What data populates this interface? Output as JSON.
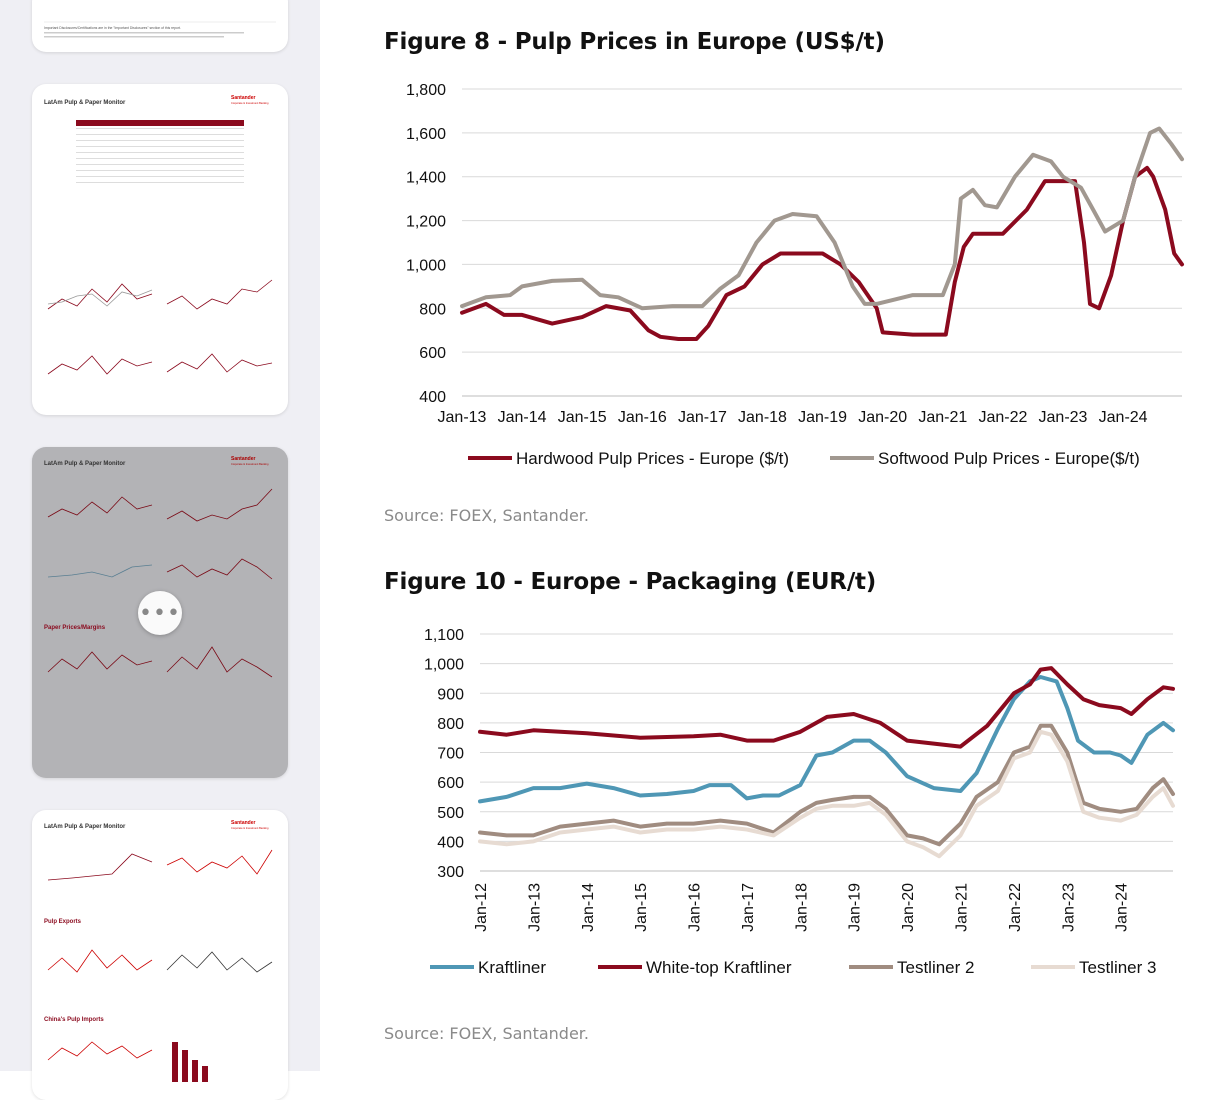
{
  "sidebar": {
    "pages": [
      {
        "id": "page-prev",
        "disclosure_title": "Important Disclosures/Certifications are in the \"Important Disclosures\" section of this report."
      },
      {
        "id": "page-a",
        "header": "LatAm Pulp & Paper Monitor",
        "brand": "Santander",
        "brand_sub": "Corporate & Investment Banking"
      },
      {
        "id": "page-b",
        "header": "LatAm Pulp & Paper Monitor",
        "brand": "Santander",
        "brand_sub": "Corporate & Investment Banking",
        "section": "Paper Prices/Margins",
        "selected": true
      },
      {
        "id": "page-c",
        "header": "LatAm Pulp & Paper Monitor",
        "brand": "Santander",
        "brand_sub": "Corporate & Investment Banking",
        "section": "Pulp Exports",
        "section2": "China's Pulp Imports"
      }
    ],
    "more_label": "•••"
  },
  "figure8": {
    "title": "Figure 8 - Pulp Prices in Europe (US$/t)",
    "source": "Source: FOEX, Santander.",
    "chart_data": {
      "type": "line",
      "title": "Figure 8 - Pulp Prices in Europe (US$/t)",
      "xlabel": "",
      "ylabel": "",
      "ylim": [
        400,
        1800
      ],
      "yticks": [
        "400",
        "600",
        "800",
        "1,000",
        "1,200",
        "1,400",
        "1,600",
        "1,800"
      ],
      "categories": [
        "Jan-13",
        "Jan-14",
        "Jan-15",
        "Jan-16",
        "Jan-17",
        "Jan-18",
        "Jan-19",
        "Jan-20",
        "Jan-21",
        "Jan-22",
        "Jan-23",
        "Jan-24"
      ],
      "x_range": [
        2013.0,
        2024.98
      ],
      "grid": true,
      "legend_position": "bottom",
      "series": [
        {
          "name": "Hardwood Pulp Prices - Europe ($/t)",
          "color": "#8b0a1e",
          "x": [
            2013.0,
            2013.4,
            2013.7,
            2014.0,
            2014.5,
            2015.0,
            2015.4,
            2015.8,
            2016.1,
            2016.3,
            2016.6,
            2016.9,
            2017.1,
            2017.4,
            2017.7,
            2018.0,
            2018.3,
            2018.6,
            2019.0,
            2019.3,
            2019.6,
            2019.9,
            2020.0,
            2020.5,
            2020.9,
            2021.05,
            2021.2,
            2021.35,
            2021.5,
            2022.0,
            2022.4,
            2022.7,
            2023.0,
            2023.2,
            2023.35,
            2023.45,
            2023.6,
            2023.8,
            2024.0,
            2024.2,
            2024.4,
            2024.5,
            2024.7,
            2024.85,
            2024.98
          ],
          "y": [
            780,
            820,
            770,
            770,
            730,
            760,
            810,
            790,
            700,
            670,
            660,
            660,
            720,
            860,
            900,
            1000,
            1050,
            1050,
            1050,
            1000,
            920,
            800,
            690,
            680,
            680,
            680,
            920,
            1080,
            1140,
            1140,
            1250,
            1380,
            1380,
            1380,
            1100,
            820,
            800,
            950,
            1200,
            1400,
            1440,
            1400,
            1250,
            1050,
            1000
          ]
        },
        {
          "name": "Softwood Pulp Prices - Europe($/t)",
          "color": "#a19890",
          "x": [
            2013.0,
            2013.4,
            2013.8,
            2014.0,
            2014.5,
            2015.0,
            2015.3,
            2015.6,
            2016.0,
            2016.5,
            2017.0,
            2017.3,
            2017.6,
            2017.9,
            2018.2,
            2018.5,
            2018.9,
            2019.2,
            2019.5,
            2019.7,
            2019.9,
            2020.5,
            2021.0,
            2021.2,
            2021.3,
            2021.5,
            2021.7,
            2021.9,
            2022.2,
            2022.5,
            2022.8,
            2023.0,
            2023.3,
            2023.5,
            2023.7,
            2024.0,
            2024.2,
            2024.45,
            2024.6,
            2024.8,
            2024.98
          ],
          "y": [
            810,
            850,
            860,
            900,
            925,
            930,
            860,
            850,
            800,
            810,
            810,
            890,
            950,
            1100,
            1200,
            1230,
            1220,
            1100,
            900,
            820,
            820,
            860,
            860,
            1000,
            1300,
            1340,
            1270,
            1260,
            1400,
            1500,
            1470,
            1400,
            1350,
            1250,
            1150,
            1200,
            1400,
            1600,
            1620,
            1550,
            1480
          ]
        }
      ]
    }
  },
  "figure10": {
    "title": "Figure 10 - Europe - Packaging (EUR/t)",
    "source": "Source: FOEX, Santander.",
    "chart_data": {
      "type": "line",
      "title": "Figure 10 - Europe - Packaging (EUR/t)",
      "xlabel": "",
      "ylabel": "",
      "ylim": [
        300,
        1100
      ],
      "yticks": [
        "300",
        "400",
        "500",
        "600",
        "700",
        "800",
        "900",
        "1,000",
        "1,100"
      ],
      "categories": [
        "Jan-12",
        "Jan-13",
        "Jan-14",
        "Jan-15",
        "Jan-16",
        "Jan-17",
        "Jan-18",
        "Jan-19",
        "Jan-20",
        "Jan-21",
        "Jan-22",
        "Jan-23",
        "Jan-24"
      ],
      "x_range": [
        2012.0,
        2024.98
      ],
      "grid": true,
      "legend_position": "bottom",
      "series": [
        {
          "name": "Kraftliner",
          "color": "#4f97b5",
          "x": [
            2012.0,
            2012.5,
            2013.0,
            2013.5,
            2014.0,
            2014.5,
            2015.0,
            2015.5,
            2016.0,
            2016.3,
            2016.7,
            2017.0,
            2017.3,
            2017.6,
            2018.0,
            2018.3,
            2018.6,
            2019.0,
            2019.3,
            2019.6,
            2020.0,
            2020.5,
            2021.0,
            2021.3,
            2021.7,
            2022.0,
            2022.3,
            2022.5,
            2022.8,
            2023.0,
            2023.2,
            2023.5,
            2023.8,
            2024.0,
            2024.2,
            2024.5,
            2024.8,
            2024.98
          ],
          "y": [
            535,
            550,
            580,
            580,
            595,
            580,
            555,
            560,
            570,
            590,
            590,
            545,
            555,
            555,
            590,
            690,
            700,
            740,
            740,
            700,
            620,
            580,
            570,
            630,
            780,
            880,
            940,
            955,
            940,
            850,
            740,
            700,
            700,
            690,
            665,
            760,
            800,
            775
          ]
        },
        {
          "name": "White-top Kraftliner",
          "color": "#8b0a1e",
          "x": [
            2012.0,
            2012.5,
            2013.0,
            2014.0,
            2015.0,
            2016.0,
            2016.5,
            2017.0,
            2017.5,
            2018.0,
            2018.5,
            2019.0,
            2019.5,
            2020.0,
            2020.5,
            2021.0,
            2021.5,
            2022.0,
            2022.3,
            2022.5,
            2022.7,
            2023.0,
            2023.3,
            2023.6,
            2024.0,
            2024.2,
            2024.5,
            2024.8,
            2024.98
          ],
          "y": [
            770,
            760,
            775,
            765,
            750,
            755,
            760,
            740,
            740,
            770,
            820,
            830,
            800,
            740,
            730,
            720,
            790,
            900,
            930,
            980,
            985,
            930,
            880,
            860,
            850,
            830,
            880,
            920,
            915
          ]
        },
        {
          "name": "Testliner 2",
          "color": "#a08c80",
          "x": [
            2012.0,
            2012.5,
            2013.0,
            2013.5,
            2014.0,
            2014.5,
            2015.0,
            2015.5,
            2016.0,
            2016.5,
            2017.0,
            2017.5,
            2018.0,
            2018.3,
            2018.6,
            2019.0,
            2019.3,
            2019.6,
            2020.0,
            2020.3,
            2020.6,
            2021.0,
            2021.3,
            2021.7,
            2022.0,
            2022.3,
            2022.5,
            2022.7,
            2023.0,
            2023.3,
            2023.6,
            2024.0,
            2024.3,
            2024.6,
            2024.8,
            2024.98
          ],
          "y": [
            430,
            420,
            420,
            450,
            460,
            470,
            450,
            460,
            460,
            470,
            460,
            430,
            500,
            530,
            540,
            550,
            550,
            510,
            420,
            410,
            390,
            460,
            550,
            600,
            700,
            720,
            790,
            790,
            700,
            530,
            510,
            500,
            510,
            580,
            610,
            560
          ]
        },
        {
          "name": "Testliner 3",
          "color": "#e7dbd2",
          "x": [
            2012.0,
            2012.5,
            2013.0,
            2013.5,
            2014.0,
            2014.5,
            2015.0,
            2015.5,
            2016.0,
            2016.5,
            2017.0,
            2017.5,
            2018.0,
            2018.3,
            2018.6,
            2019.0,
            2019.3,
            2019.6,
            2020.0,
            2020.3,
            2020.6,
            2021.0,
            2021.3,
            2021.7,
            2022.0,
            2022.3,
            2022.5,
            2022.7,
            2023.0,
            2023.3,
            2023.6,
            2024.0,
            2024.3,
            2024.6,
            2024.8,
            2024.98
          ],
          "y": [
            400,
            390,
            400,
            430,
            440,
            450,
            430,
            440,
            440,
            450,
            440,
            420,
            480,
            510,
            520,
            520,
            530,
            490,
            400,
            380,
            350,
            420,
            520,
            570,
            680,
            700,
            770,
            760,
            670,
            500,
            480,
            470,
            490,
            550,
            580,
            520
          ]
        }
      ]
    }
  }
}
